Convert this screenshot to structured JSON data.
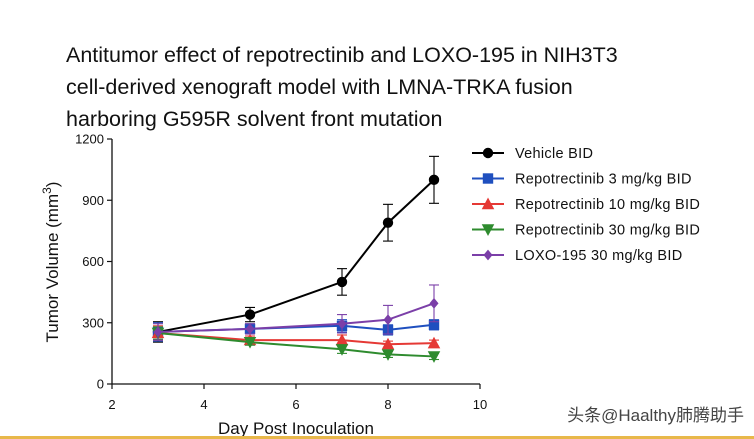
{
  "chart_data": {
    "type": "line",
    "title_lines": [
      "Antitumor effect of repotrectinib and LOXO-195 in NIH3T3",
      "cell-derived xenograft model with LMNA-TRKA fusion",
      "harboring G595R solvent front mutation"
    ],
    "xlabel": "Day Post Inoculation",
    "ylabel_main": "Tumor Volume (mm",
    "ylabel_sup": "3",
    "ylabel_close": ")",
    "xlim": [
      2,
      10
    ],
    "ylim": [
      0,
      1200
    ],
    "xticks": [
      2,
      4,
      6,
      8,
      10
    ],
    "yticks": [
      0,
      300,
      600,
      900,
      1200
    ],
    "grid": false,
    "legend_position": "top-right",
    "x": [
      3,
      5,
      7,
      8,
      9
    ],
    "series": [
      {
        "name": "Vehicle BID",
        "color": "#000000",
        "marker": "circle",
        "values": [
          255,
          340,
          500,
          790,
          1000
        ],
        "errors": [
          50,
          35,
          65,
          90,
          115
        ]
      },
      {
        "name": "Repotrectinib 3 mg/kg BID",
        "color": "#1f4fbf",
        "marker": "square",
        "values": [
          255,
          270,
          285,
          265,
          290
        ],
        "errors": [
          45,
          25,
          30,
          25,
          25
        ]
      },
      {
        "name": "Repotrectinib 10 mg/kg BID",
        "color": "#e53935",
        "marker": "triangle-up",
        "values": [
          250,
          215,
          215,
          195,
          200
        ],
        "errors": [
          35,
          20,
          25,
          15,
          15
        ]
      },
      {
        "name": "Repotrectinib 30 mg/kg BID",
        "color": "#2e8b2e",
        "marker": "triangle-down",
        "values": [
          250,
          205,
          170,
          145,
          135
        ],
        "errors": [
          30,
          15,
          20,
          15,
          15
        ]
      },
      {
        "name": "LOXO-195 30 mg/kg BID",
        "color": "#7b3fa8",
        "marker": "diamond",
        "values": [
          255,
          270,
          295,
          315,
          395
        ],
        "errors": [
          40,
          25,
          45,
          70,
          90
        ]
      }
    ]
  },
  "watermark": "头条@Haalthy肺腾助手",
  "colors": {
    "bottom_bar": "#e8b84a"
  }
}
